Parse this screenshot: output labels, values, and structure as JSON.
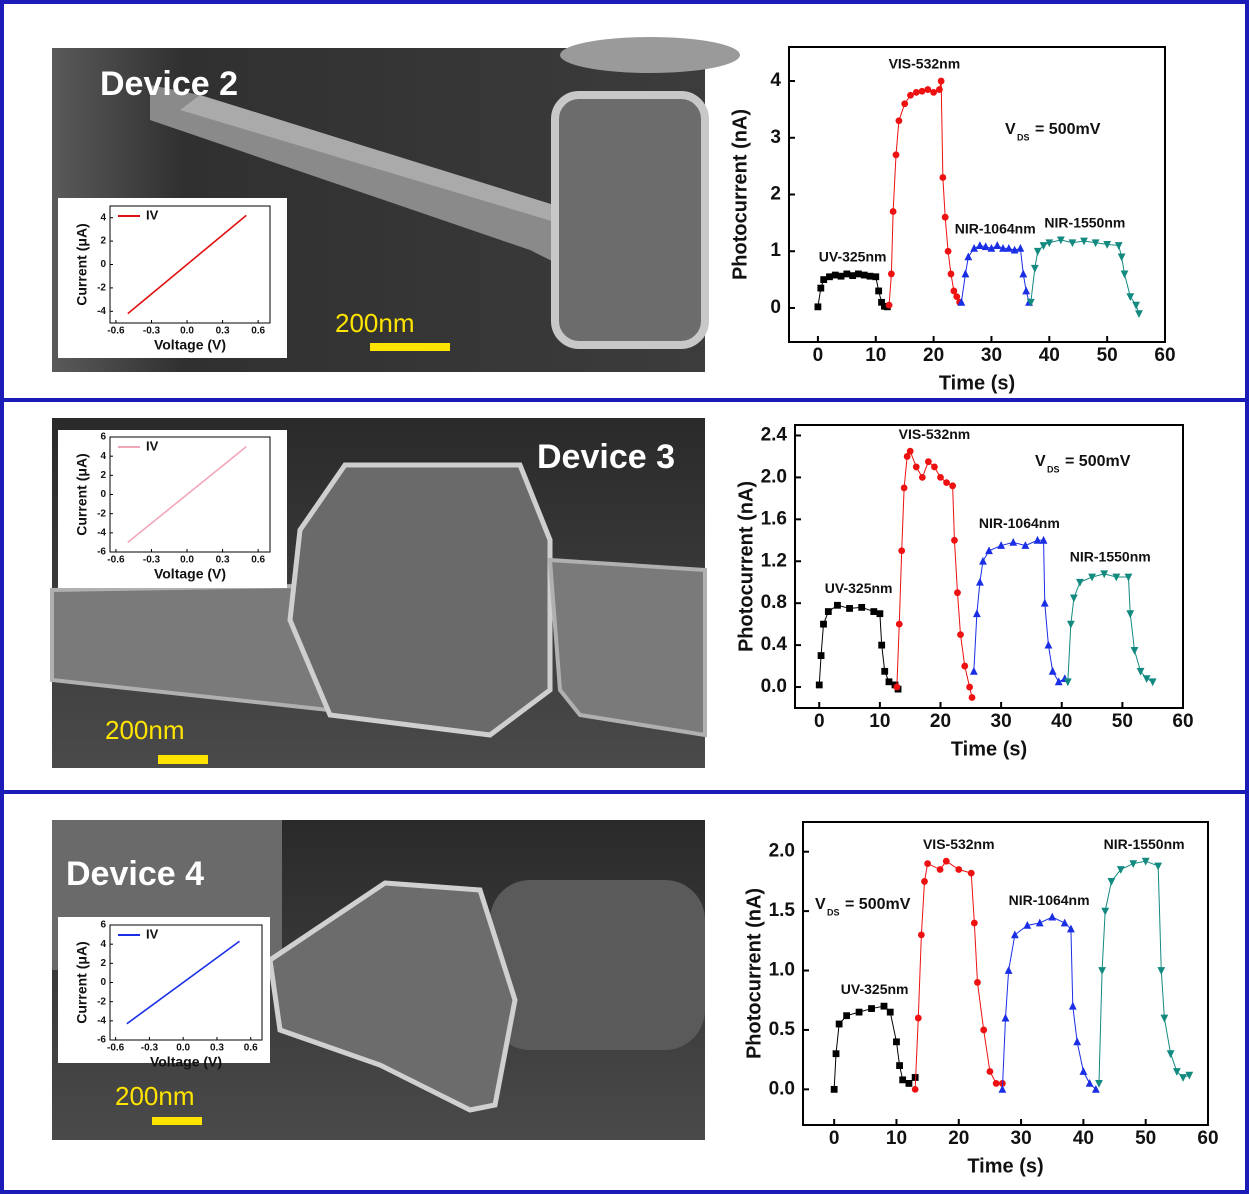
{
  "panels": [
    {
      "device_label": "Device 2",
      "scale_bar": "200nm"
    },
    {
      "device_label": "Device 3",
      "scale_bar": "200nm"
    },
    {
      "device_label": "Device 4",
      "scale_bar": "200nm"
    }
  ],
  "chart_data": [
    {
      "type": "scatter",
      "x_label": "Time (s)",
      "y_label": "Photocurrent (nA)",
      "annotation": [
        "V",
        "DS",
        "= 500mV"
      ],
      "xlim": [
        -5,
        60
      ],
      "xticks": [
        0,
        10,
        20,
        30,
        40,
        50,
        60
      ],
      "ylim": [
        -0.6,
        4.6
      ],
      "yticks": [
        0,
        1,
        2,
        3,
        4
      ],
      "series": [
        {
          "name": "UV-325nm",
          "color": "#000000",
          "marker": "square",
          "x": [
            0,
            0.5,
            1,
            2,
            3,
            4,
            5,
            6,
            7,
            8,
            9,
            10,
            10.5,
            11,
            11.5,
            12
          ],
          "values": [
            0.02,
            0.35,
            0.5,
            0.55,
            0.58,
            0.56,
            0.6,
            0.57,
            0.6,
            0.58,
            0.56,
            0.55,
            0.3,
            0.1,
            0.03,
            0.02
          ]
        },
        {
          "name": "VIS-532nm",
          "color": "#ee1111",
          "marker": "circle",
          "x": [
            12.3,
            12.7,
            13,
            13.5,
            14,
            15,
            16,
            17,
            18,
            19,
            20,
            21,
            21.3,
            21.6,
            22,
            22.5,
            23,
            23.5,
            24,
            24.5
          ],
          "values": [
            0.05,
            0.6,
            1.7,
            2.7,
            3.3,
            3.6,
            3.75,
            3.8,
            3.82,
            3.85,
            3.8,
            3.85,
            4.0,
            2.3,
            1.6,
            1.0,
            0.6,
            0.3,
            0.2,
            0.1
          ]
        },
        {
          "name": "NIR-1064nm",
          "color": "#1a2ee6",
          "marker": "triangle-up",
          "x": [
            24.8,
            25.5,
            26,
            27,
            28,
            29,
            30,
            31,
            32,
            33,
            34,
            35,
            35.5,
            36,
            36.5
          ],
          "values": [
            0.1,
            0.6,
            0.9,
            1.05,
            1.1,
            1.08,
            1.05,
            1.1,
            1.05,
            1.05,
            1.02,
            1.05,
            0.6,
            0.3,
            0.1
          ]
        },
        {
          "name": "NIR-1550nm",
          "color": "#138a80",
          "marker": "triangle-down",
          "x": [
            36.8,
            37.5,
            38,
            39,
            40,
            42,
            44,
            46,
            48,
            50,
            52,
            52.5,
            53,
            54,
            55,
            55.5
          ],
          "values": [
            0.1,
            0.7,
            1.0,
            1.1,
            1.15,
            1.2,
            1.15,
            1.18,
            1.15,
            1.12,
            1.1,
            0.9,
            0.6,
            0.2,
            0.05,
            -0.1
          ]
        }
      ]
    },
    {
      "type": "line",
      "x_label": "Voltage (V)",
      "y_label": "Current (μA)",
      "xlim": [
        -0.65,
        0.7
      ],
      "xticks": [
        -0.6,
        -0.3,
        {
          "value": 0,
          "label": "0.0"
        },
        0.3,
        0.6
      ],
      "ylim": [
        -5,
        5
      ],
      "yticks": [
        -4,
        -2,
        0,
        2,
        4
      ],
      "series": [
        {
          "name": "IV",
          "color": "#e01010",
          "x": [
            -0.5,
            0.5
          ],
          "values": [
            -4.2,
            4.2
          ]
        }
      ]
    },
    {
      "type": "scatter",
      "x_label": "Time (s)",
      "y_label": "Photocurrent (nA)",
      "annotation": [
        "V",
        "DS",
        "= 500mV"
      ],
      "xlim": [
        -4,
        60
      ],
      "xticks": [
        0,
        10,
        20,
        30,
        40,
        50,
        60
      ],
      "ylim": [
        -0.2,
        2.5
      ],
      "yticks": [
        {
          "value": 0,
          "label": "0.0"
        },
        0.4,
        0.8,
        1.2,
        1.6,
        {
          "value": 2,
          "label": "2.0"
        },
        2.4
      ],
      "series": [
        {
          "name": "UV-325nm",
          "color": "#000000",
          "marker": "square",
          "x": [
            0,
            0.3,
            0.7,
            1.5,
            3,
            5,
            7,
            9,
            10,
            10.3,
            10.8,
            11.5,
            12.5,
            13
          ],
          "values": [
            0.02,
            0.3,
            0.6,
            0.72,
            0.78,
            0.75,
            0.76,
            0.72,
            0.7,
            0.4,
            0.15,
            0.05,
            0.02,
            -0.02
          ]
        },
        {
          "name": "VIS-532nm",
          "color": "#ee1111",
          "marker": "circle",
          "x": [
            12.8,
            13.2,
            13.6,
            14,
            14.5,
            15,
            16,
            17,
            18,
            19,
            20,
            21,
            22,
            22.3,
            22.8,
            23.3,
            24,
            24.8,
            25.2
          ],
          "values": [
            0,
            0.6,
            1.3,
            1.9,
            2.2,
            2.25,
            2.1,
            2.0,
            2.15,
            2.1,
            2.0,
            1.95,
            1.92,
            1.4,
            0.9,
            0.5,
            0.2,
            0,
            -0.1
          ]
        },
        {
          "name": "NIR-1064nm",
          "color": "#1a2ee6",
          "marker": "triangle-up",
          "x": [
            25.5,
            26,
            26.5,
            27,
            28,
            30,
            32,
            34,
            36,
            37,
            37.2,
            37.8,
            38.5,
            39.5,
            40.5
          ],
          "values": [
            0.15,
            0.7,
            1.0,
            1.2,
            1.3,
            1.35,
            1.38,
            1.35,
            1.4,
            1.4,
            0.8,
            0.4,
            0.15,
            0.05,
            0.08
          ]
        },
        {
          "name": "NIR-1550nm",
          "color": "#138a80",
          "marker": "triangle-down",
          "x": [
            41,
            41.5,
            42,
            43,
            45,
            47,
            49,
            51,
            51.3,
            52,
            53,
            54,
            55
          ],
          "values": [
            0.05,
            0.6,
            0.85,
            1.0,
            1.05,
            1.08,
            1.05,
            1.05,
            0.7,
            0.35,
            0.15,
            0.08,
            0.05
          ]
        }
      ]
    },
    {
      "type": "line",
      "x_label": "Voltage (V)",
      "y_label": "Current (μA)",
      "xlim": [
        -0.65,
        0.7
      ],
      "xticks": [
        -0.6,
        -0.3,
        {
          "value": 0,
          "label": "0.0"
        },
        0.3,
        0.6
      ],
      "ylim": [
        -6,
        6
      ],
      "yticks": [
        -6,
        -4,
        -2,
        0,
        2,
        4,
        6
      ],
      "series": [
        {
          "name": "IV",
          "color": "#f2a7b8",
          "x": [
            -0.5,
            0.5
          ],
          "values": [
            -5,
            5
          ]
        }
      ]
    },
    {
      "type": "scatter",
      "x_label": "Time (s)",
      "y_label": "Photocurrent (nA)",
      "annotation": [
        "V",
        "DS",
        "= 500mV"
      ],
      "xlim": [
        -5,
        60
      ],
      "xticks": [
        0,
        10,
        20,
        30,
        40,
        50,
        60
      ],
      "ylim": [
        -0.3,
        2.25
      ],
      "yticks": [
        {
          "value": 0,
          "label": "0.0"
        },
        0.5,
        {
          "value": 1,
          "label": "1.0"
        },
        1.5,
        {
          "value": 2,
          "label": "2.0"
        }
      ],
      "series": [
        {
          "name": "UV-325nm",
          "color": "#000000",
          "marker": "square",
          "x": [
            0,
            0.3,
            0.8,
            2,
            4,
            6,
            8,
            9,
            10,
            10.5,
            11,
            12,
            13
          ],
          "values": [
            0,
            0.3,
            0.55,
            0.62,
            0.65,
            0.68,
            0.7,
            0.65,
            0.4,
            0.2,
            0.08,
            0.05,
            0.1
          ]
        },
        {
          "name": "VIS-532nm",
          "color": "#ee1111",
          "marker": "circle",
          "x": [
            13,
            13.5,
            14,
            14.5,
            15,
            17,
            18,
            20,
            22,
            22.5,
            23,
            24,
            25,
            26,
            27
          ],
          "values": [
            0,
            0.6,
            1.3,
            1.75,
            1.9,
            1.85,
            1.92,
            1.85,
            1.82,
            1.4,
            0.9,
            0.5,
            0.15,
            0.05,
            0.05
          ]
        },
        {
          "name": "NIR-1064nm",
          "color": "#1a2ee6",
          "marker": "triangle-up",
          "x": [
            27,
            27.5,
            28,
            29,
            31,
            33,
            35,
            37,
            38,
            38.3,
            39,
            40,
            41,
            42
          ],
          "values": [
            0,
            0.6,
            1.0,
            1.3,
            1.38,
            1.4,
            1.45,
            1.4,
            1.35,
            0.7,
            0.4,
            0.15,
            0.05,
            0
          ]
        },
        {
          "name": "NIR-1550nm",
          "color": "#138a80",
          "marker": "triangle-down",
          "x": [
            42.5,
            43,
            43.5,
            44.5,
            46,
            48,
            50,
            52,
            52.5,
            53,
            54,
            55,
            56,
            57
          ],
          "values": [
            0.05,
            1.0,
            1.5,
            1.75,
            1.85,
            1.9,
            1.92,
            1.88,
            1.0,
            0.6,
            0.3,
            0.15,
            0.1,
            0.12
          ]
        }
      ]
    },
    {
      "type": "line",
      "x_label": "Voltage (V)",
      "y_label": "Current (μA)",
      "xlim": [
        -0.65,
        0.7
      ],
      "xticks": [
        -0.6,
        -0.3,
        {
          "value": 0,
          "label": "0.0"
        },
        0.3,
        0.6
      ],
      "ylim": [
        -6,
        6
      ],
      "yticks": [
        -6,
        -4,
        -2,
        0,
        2,
        4,
        6
      ],
      "series": [
        {
          "name": "IV",
          "color": "#1a2ee6",
          "x": [
            -0.5,
            0.5
          ],
          "values": [
            -4.3,
            4.3
          ]
        }
      ]
    }
  ]
}
